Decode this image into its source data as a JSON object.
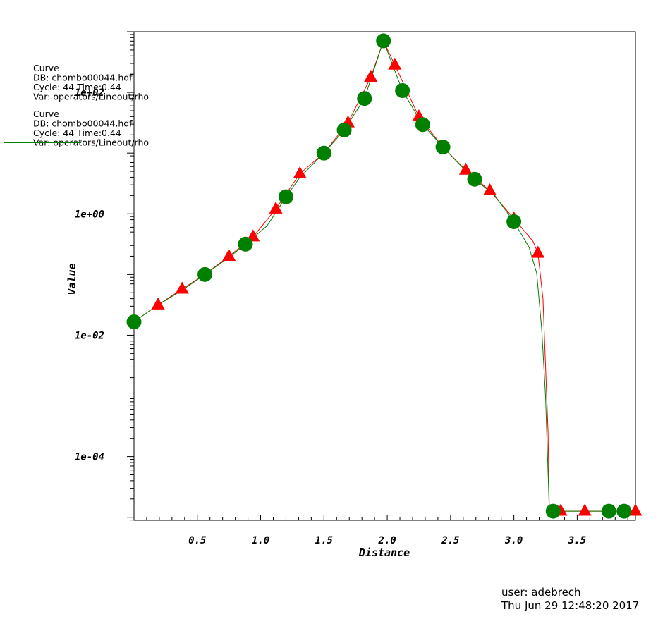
{
  "chart_data": {
    "type": "line",
    "xlabel": "Distance",
    "ylabel": "Value",
    "x_ticks": [
      "0.5",
      "1.0",
      "1.5",
      "2.0",
      "2.5",
      "3.0",
      "3.5"
    ],
    "x_tick_values": [
      0.5,
      1.0,
      1.5,
      2.0,
      2.5,
      3.0,
      3.5
    ],
    "y_ticks": [
      "1e+02",
      "1e+00",
      "1e-02",
      "1e-04"
    ],
    "y_tick_values": [
      2,
      0,
      -2,
      -4
    ],
    "xlim": [
      0,
      3.96
    ],
    "ylim_log10": [
      -5.05,
      3
    ],
    "y_scale": "log",
    "grid": false,
    "legend_placement": "top-left",
    "series": [
      {
        "legend": [
          "Curve",
          "DB: chombo00044.hdf",
          "Cycle: 44       Time:0.44",
          "Var: operators/Lineout/rho"
        ],
        "color": "#ff0000",
        "marker": "triangle",
        "points": [
          [
            0.0,
            -1.78
          ],
          [
            0.19,
            -1.5
          ],
          [
            0.38,
            -1.24
          ],
          [
            0.56,
            -1.0
          ],
          [
            0.75,
            -0.7
          ],
          [
            0.94,
            -0.38
          ],
          [
            1.12,
            0.08
          ],
          [
            1.31,
            0.66
          ],
          [
            1.5,
            1.0
          ],
          [
            1.69,
            1.5
          ],
          [
            1.87,
            2.25
          ],
          [
            1.97,
            2.85
          ],
          [
            2.06,
            2.45
          ],
          [
            2.25,
            1.6
          ],
          [
            2.44,
            1.1
          ],
          [
            2.62,
            0.72
          ],
          [
            2.81,
            0.38
          ],
          [
            3.0,
            -0.08
          ],
          [
            3.15,
            -0.45
          ],
          [
            3.19,
            -0.65
          ],
          [
            3.23,
            -1.4
          ],
          [
            3.25,
            -2.5
          ],
          [
            3.27,
            -3.6
          ],
          [
            3.28,
            -4.9
          ],
          [
            3.37,
            -4.9
          ],
          [
            3.56,
            -4.9
          ],
          [
            3.75,
            -4.9
          ],
          [
            3.96,
            -4.9
          ]
        ],
        "marker_x": [
          0.19,
          0.38,
          0.75,
          0.94,
          1.12,
          1.31,
          1.69,
          1.87,
          2.06,
          2.25,
          2.62,
          2.81,
          3.0,
          3.19,
          3.37,
          3.56,
          3.96
        ]
      },
      {
        "legend": [
          "Curve",
          "DB: chombo00044.hdf",
          "Cycle: 44       Time:0.44",
          "Var: operators/Lineout/rho"
        ],
        "color": "#008000",
        "marker": "circle",
        "points": [
          [
            0.0,
            -1.78
          ],
          [
            0.19,
            -1.5
          ],
          [
            0.38,
            -1.26
          ],
          [
            0.56,
            -1.0
          ],
          [
            0.75,
            -0.72
          ],
          [
            0.88,
            -0.5
          ],
          [
            1.05,
            -0.2
          ],
          [
            1.2,
            0.28
          ],
          [
            1.31,
            0.6
          ],
          [
            1.5,
            1.0
          ],
          [
            1.66,
            1.38
          ],
          [
            1.82,
            1.9
          ],
          [
            1.97,
            2.85
          ],
          [
            2.12,
            2.03
          ],
          [
            2.28,
            1.47
          ],
          [
            2.44,
            1.1
          ],
          [
            2.6,
            0.75
          ],
          [
            2.69,
            0.57
          ],
          [
            2.85,
            0.3
          ],
          [
            3.0,
            -0.13
          ],
          [
            3.12,
            -0.55
          ],
          [
            3.18,
            -0.98
          ],
          [
            3.22,
            -1.9
          ],
          [
            3.25,
            -3.0
          ],
          [
            3.28,
            -4.9
          ],
          [
            3.31,
            -4.9
          ],
          [
            3.75,
            -4.9
          ],
          [
            3.87,
            -4.9
          ],
          [
            3.96,
            -4.9
          ]
        ],
        "marker_x": [
          0.0,
          0.56,
          0.88,
          1.2,
          1.5,
          1.66,
          1.82,
          1.97,
          2.12,
          2.28,
          2.44,
          2.69,
          3.0,
          3.31,
          3.75,
          3.87
        ]
      }
    ]
  },
  "footer": {
    "user": "user: adebrech",
    "timestamp": "Thu Jun 29 12:48:20 2017"
  }
}
